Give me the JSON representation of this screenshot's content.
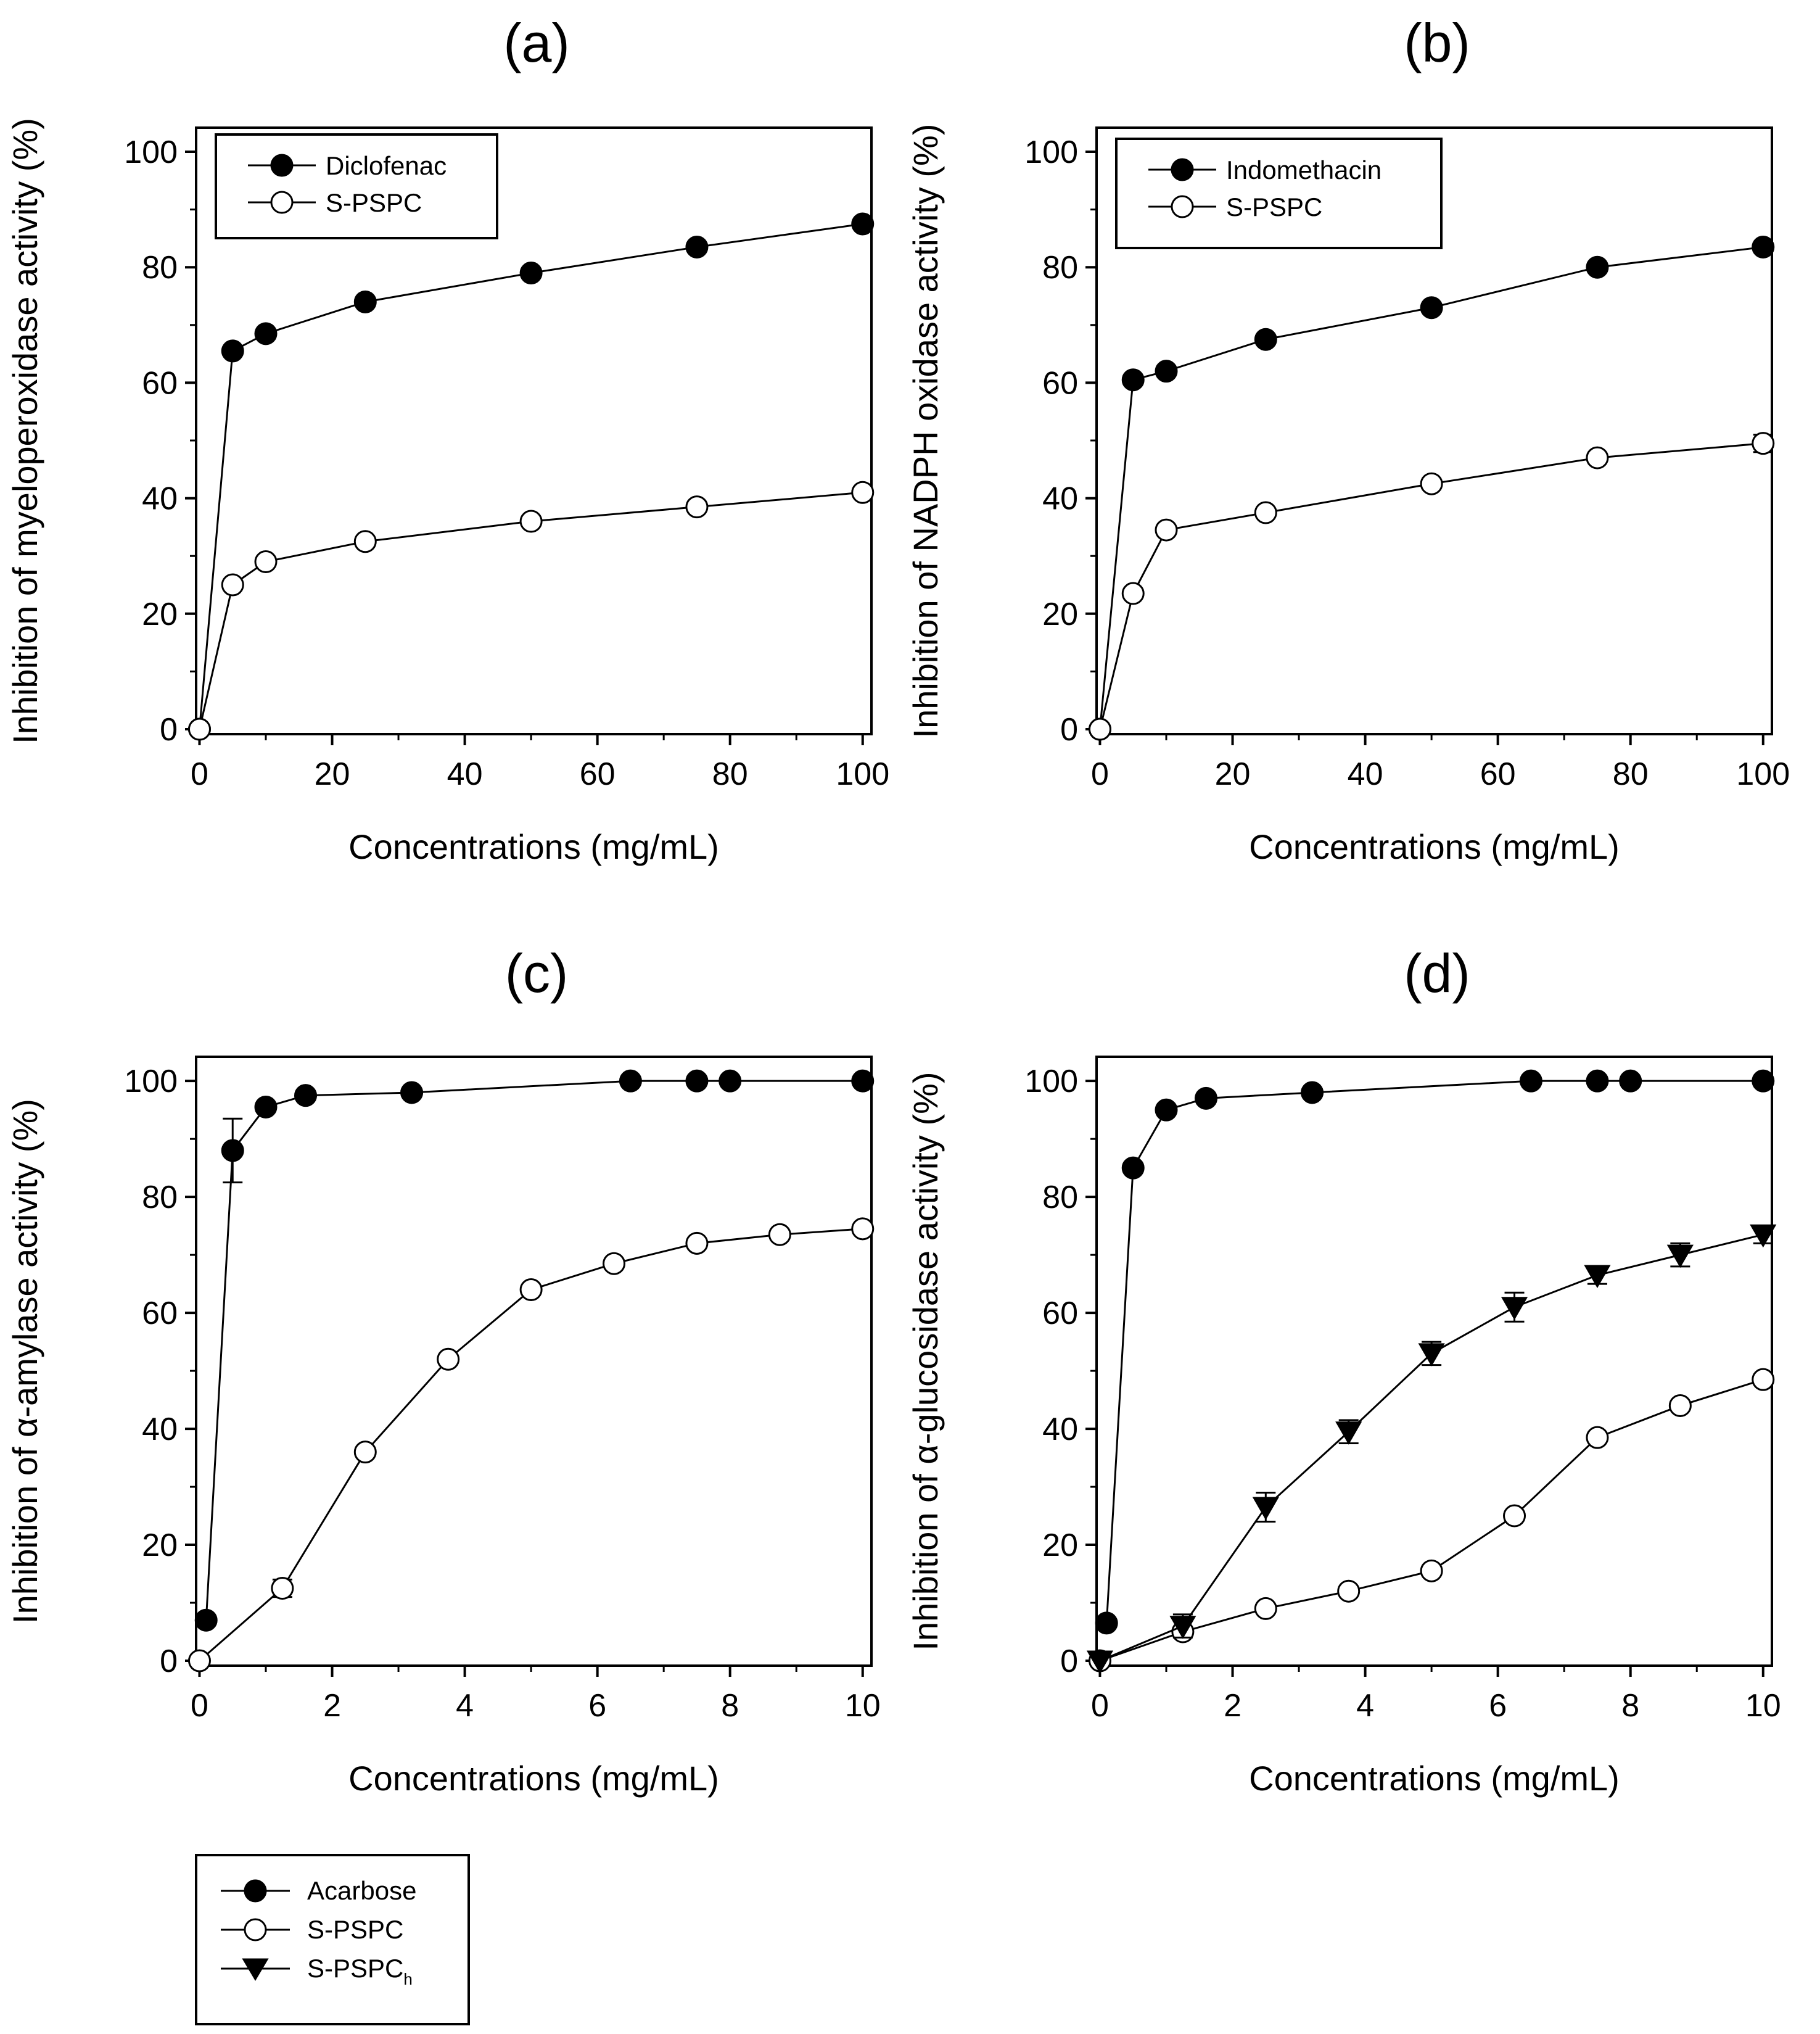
{
  "chart_data": [
    {
      "id": "a",
      "type": "line",
      "panel_label": "(a)",
      "xlabel": "Concentrations (mg/mL)",
      "ylabel": "Inhibition of myeloperoxidase activity (%)",
      "xlim": [
        0,
        100
      ],
      "ylim": [
        0,
        100
      ],
      "xticks": [
        0,
        20,
        40,
        60,
        80,
        100
      ],
      "yticks": [
        0,
        20,
        40,
        60,
        80,
        100
      ],
      "legend_position": "top-left",
      "series": [
        {
          "name": "Diclofenac",
          "marker": "filled-circle",
          "x": [
            0,
            5,
            10,
            25,
            50,
            75,
            100
          ],
          "y": [
            0,
            65.5,
            68.5,
            74,
            79,
            83.5,
            87.5
          ],
          "err": []
        },
        {
          "name": "S-PSPC",
          "marker": "open-circle",
          "x": [
            0,
            5,
            10,
            25,
            50,
            75,
            100
          ],
          "y": [
            0,
            25,
            29,
            32.5,
            36,
            38.5,
            41
          ],
          "err": []
        }
      ]
    },
    {
      "id": "b",
      "type": "line",
      "panel_label": "(b)",
      "xlabel": "Concentrations (mg/mL)",
      "ylabel": "Inhibition of NADPH oxidase activity (%)",
      "xlim": [
        0,
        100
      ],
      "ylim": [
        0,
        100
      ],
      "xticks": [
        0,
        20,
        40,
        60,
        80,
        100
      ],
      "yticks": [
        0,
        20,
        40,
        60,
        80,
        100
      ],
      "legend_position": "top-left",
      "series": [
        {
          "name": "Indomethacin",
          "marker": "filled-circle",
          "x": [
            0,
            5,
            10,
            25,
            50,
            75,
            100
          ],
          "y": [
            0,
            60.5,
            62,
            67.5,
            73,
            80,
            83.5
          ],
          "err": []
        },
        {
          "name": "S-PSPC",
          "marker": "open-circle",
          "x": [
            0,
            5,
            10,
            25,
            50,
            75,
            100
          ],
          "y": [
            0,
            23.5,
            34.5,
            37.5,
            42.5,
            47,
            49.5
          ],
          "err": [
            0,
            0,
            0,
            0,
            0,
            0,
            1.5
          ]
        }
      ]
    },
    {
      "id": "c",
      "type": "line",
      "panel_label": "(c)",
      "xlabel": "Concentrations (mg/mL)",
      "ylabel": "Inhibition of α-amylase activity (%)",
      "xlim": [
        0,
        10
      ],
      "ylim": [
        0,
        100
      ],
      "xticks": [
        0,
        2,
        4,
        6,
        8,
        10
      ],
      "yticks": [
        0,
        20,
        40,
        60,
        80,
        100
      ],
      "legend_position": "none",
      "series": [
        {
          "name": "Acarbose",
          "marker": "filled-circle",
          "x": [
            0.1,
            0.5,
            1,
            1.6,
            3.2,
            6.5,
            7.5,
            8,
            10
          ],
          "y": [
            7,
            88,
            95.5,
            97.5,
            98,
            100,
            100,
            100,
            100
          ],
          "err": [
            0,
            5.5,
            0,
            0,
            0,
            0,
            0,
            0,
            0
          ]
        },
        {
          "name": "S-PSPC",
          "marker": "open-circle",
          "x": [
            0,
            1.25,
            2.5,
            3.75,
            5,
            6.25,
            7.5,
            8.75,
            10
          ],
          "y": [
            0,
            12.5,
            36,
            52,
            64,
            68.5,
            72,
            73.5,
            74.5
          ],
          "err": [
            0,
            1.5,
            0,
            0,
            0,
            0,
            0,
            0,
            0
          ]
        }
      ]
    },
    {
      "id": "d",
      "type": "line",
      "panel_label": "(d)",
      "xlabel": "Concentrations (mg/mL)",
      "ylabel": "Inhibition of α-glucosidase activity (%)",
      "xlim": [
        0,
        10
      ],
      "ylim": [
        0,
        100
      ],
      "xticks": [
        0,
        2,
        4,
        6,
        8,
        10
      ],
      "yticks": [
        0,
        20,
        40,
        60,
        80,
        100
      ],
      "legend_position": "none",
      "series": [
        {
          "name": "Acarbose",
          "marker": "filled-circle",
          "x": [
            0.1,
            0.5,
            1,
            1.6,
            3.2,
            6.5,
            7.5,
            8,
            10
          ],
          "y": [
            6.5,
            85,
            95,
            97,
            98,
            100,
            100,
            100,
            100
          ],
          "err": []
        },
        {
          "name": "S-PSPC",
          "marker": "open-circle",
          "x": [
            0,
            1.25,
            2.5,
            3.75,
            5,
            6.25,
            7.5,
            8.75,
            10
          ],
          "y": [
            0,
            5,
            9,
            12,
            15.5,
            25,
            38.5,
            44,
            48.5
          ],
          "err": []
        },
        {
          "name": "S-PSPCh",
          "marker": "filled-triangle-down",
          "x": [
            0,
            1.25,
            2.5,
            3.75,
            5,
            6.25,
            7.5,
            8.75,
            10
          ],
          "y": [
            0,
            6,
            26.5,
            39.5,
            53,
            61,
            66.5,
            70,
            73.5
          ],
          "err": [
            0,
            2,
            2.5,
            2,
            2,
            2.5,
            1.5,
            2,
            1.5
          ]
        }
      ]
    }
  ],
  "legend_a": [
    "Diclofenac",
    "S-PSPC"
  ],
  "legend_b": [
    "Indomethacin",
    "S-PSPC"
  ],
  "legend_shared": {
    "items": [
      "Acarbose",
      "S-PSPC",
      "S-PSPC"
    ],
    "subscript": "h"
  }
}
